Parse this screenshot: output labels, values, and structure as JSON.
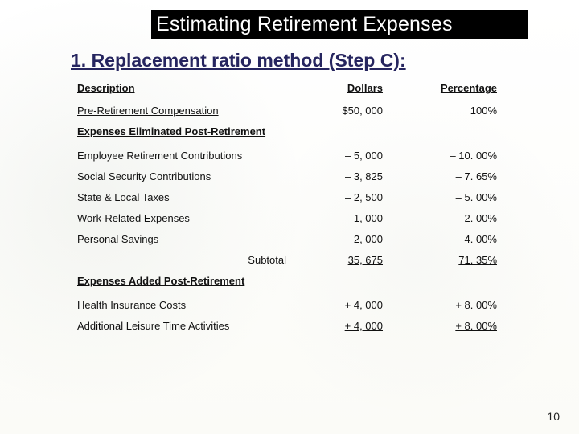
{
  "title": "Estimating Retirement Expenses",
  "subtitle": "1. Replacement ratio method (Step C):",
  "headers": {
    "description": "Description",
    "dollars": "Dollars",
    "percentage": "Percentage"
  },
  "baseline": {
    "label": "Pre-Retirement Compensation",
    "dollars": "$50, 000",
    "percentage": "100%"
  },
  "eliminated": {
    "section": "Expenses Eliminated Post-Retirement",
    "rows": [
      {
        "label": "Employee Retirement Contributions",
        "dollars": "– 5, 000",
        "percentage": "– 10. 00%"
      },
      {
        "label": "Social Security Contributions",
        "dollars": "– 3, 825",
        "percentage": "–   7. 65%"
      },
      {
        "label": "State & Local Taxes",
        "dollars": "– 2, 500",
        "percentage": "–   5. 00%"
      },
      {
        "label": "Work-Related Expenses",
        "dollars": "– 1, 000",
        "percentage": "–   2. 00%"
      },
      {
        "label": "Personal Savings",
        "dollars": "– 2, 000",
        "percentage": "–   4. 00%"
      }
    ],
    "subtotal": {
      "label": "Subtotal",
      "dollars": "  35, 675",
      "percentage": "    71. 35%"
    }
  },
  "added": {
    "section": "Expenses Added Post-Retirement",
    "rows": [
      {
        "label": "Health Insurance Costs",
        "dollars": "+ 4, 000",
        "percentage": "+   8. 00%"
      },
      {
        "label": "Additional Leisure Time Activities",
        "dollars": "+ 4, 000",
        "percentage": "+   8. 00%"
      }
    ]
  },
  "page": "10",
  "colors": {
    "title_bg": "#000000",
    "title_fg": "#ffffff",
    "subtitle_fg": "#26255f",
    "body_fg": "#111111",
    "page_bg": "#fdfdfb"
  },
  "fonts": {
    "family": "Arial",
    "title_pt": 25,
    "subtitle_pt": 23,
    "body_pt": 13
  }
}
